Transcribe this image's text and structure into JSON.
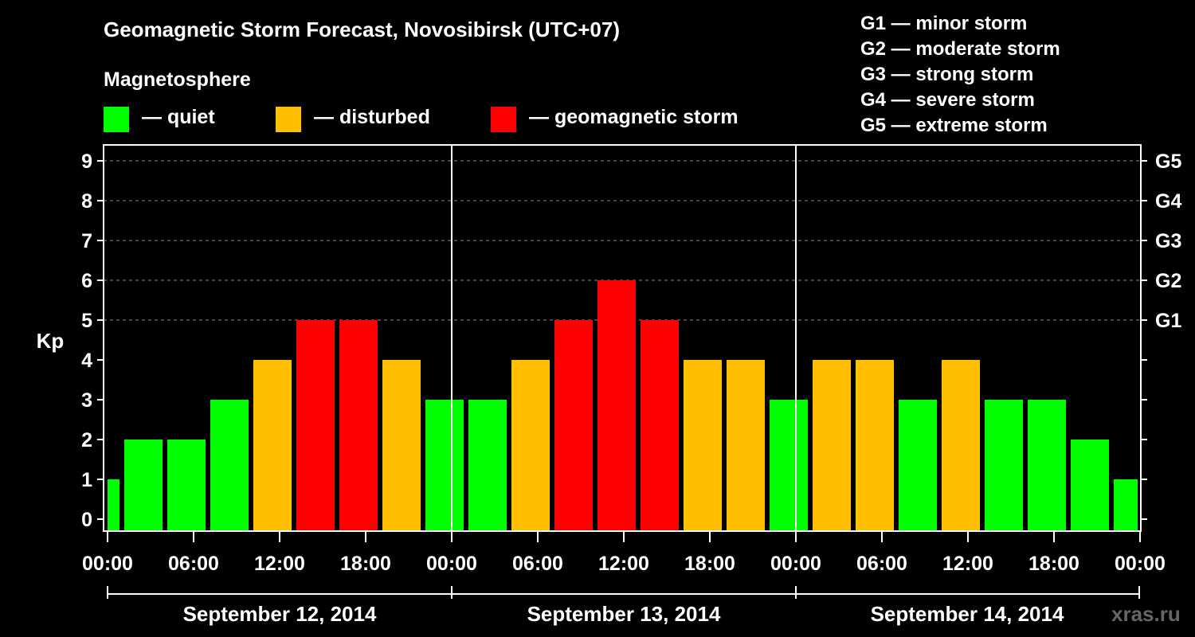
{
  "title": "Geomagnetic Storm Forecast, Novosibirsk (UTC+07)",
  "magnetosphere_label": "Magnetosphere",
  "legend": {
    "quiet": {
      "label": "— quiet",
      "color": "#00ff00"
    },
    "disturbed": {
      "label": "— disturbed",
      "color": "#ffbf00"
    },
    "storm": {
      "label": "— geomagnetic storm",
      "color": "#ff0000"
    }
  },
  "g_scale": [
    "G1 — minor storm",
    "G2 — moderate storm",
    "G3 — strong storm",
    "G4 — severe storm",
    "G5 — extreme storm"
  ],
  "watermark": "xras.ru",
  "chart_data": {
    "type": "bar",
    "ylabel": "Kp",
    "ylim": [
      0,
      9
    ],
    "y_ticks": [
      0,
      1,
      2,
      3,
      4,
      5,
      6,
      7,
      8,
      9
    ],
    "right_ticks": [
      {
        "kp": 5,
        "label": "G1"
      },
      {
        "kp": 6,
        "label": "G2"
      },
      {
        "kp": 7,
        "label": "G3"
      },
      {
        "kp": 8,
        "label": "G4"
      },
      {
        "kp": 9,
        "label": "G5"
      }
    ],
    "x_tick_labels": [
      "00:00",
      "06:00",
      "12:00",
      "18:00",
      "00:00",
      "06:00",
      "12:00",
      "18:00",
      "00:00",
      "06:00",
      "12:00",
      "18:00",
      "00:00"
    ],
    "days": [
      "September 12, 2014",
      "September 13, 2014",
      "September 14, 2014"
    ],
    "grid": "dashed horizontal lines at Kp 5-9",
    "series": [
      {
        "values": [
          1,
          2,
          2,
          3,
          4,
          5,
          5,
          4,
          3,
          3,
          4,
          5,
          6,
          5,
          4,
          4,
          3,
          4,
          4,
          3,
          4,
          3,
          3,
          2,
          1
        ]
      }
    ]
  }
}
